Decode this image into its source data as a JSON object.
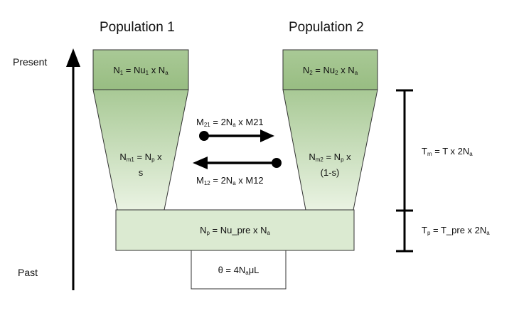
{
  "headers": {
    "population1": "Population 1",
    "population2": "Population 2"
  },
  "time_axis": {
    "present": "Present",
    "past": "Past"
  },
  "population1": {
    "top_prefix": "N",
    "top_sub1": "1",
    "top_mid": " = Nu",
    "top_sub2": "1",
    "top_mid2": " x N",
    "top_sub3": "a",
    "trap_prefix": "N",
    "trap_sub1": "m1",
    "trap_mid": " = N",
    "trap_sub2": "p",
    "trap_end": " x",
    "trap_line2": "s"
  },
  "population2": {
    "top_prefix": "N",
    "top_sub1": "2",
    "top_mid": " = Nu",
    "top_sub2": "2",
    "top_mid2": " x N",
    "top_sub3": "a",
    "trap_prefix": "N",
    "trap_sub1": "m2",
    "trap_mid": " = N",
    "trap_sub2": "p",
    "trap_end": " x",
    "trap_line2": "(1-s)"
  },
  "migration": {
    "m21_prefix": "M",
    "m21_sub": "21",
    "m21_mid": " = 2N",
    "m21_sub2": "a",
    "m21_end": " x M21",
    "m12_prefix": "M",
    "m12_sub": "12",
    "m12_mid": " = 2N",
    "m12_sub2": "a",
    "m12_end": " x M12"
  },
  "ancestral": {
    "prefix": "N",
    "sub1": "p",
    "mid": " = Nu_pre x N",
    "sub2": "a"
  },
  "root": {
    "prefix": "θ = 4N",
    "sub": "a",
    "end": "μL"
  },
  "times": {
    "tm_prefix": "T",
    "tm_sub": "m",
    "tm_mid": " = T x 2N",
    "tm_sub2": "a",
    "tp_prefix": "T",
    "tp_sub": "p",
    "tp_mid": " = T_pre x 2N",
    "tp_sub2": "a"
  },
  "colors": {
    "box_top": "#a2c48e",
    "trap_top": "#a8c995",
    "trap_bottom": "#eaf3e3",
    "ancestral": "#dbead1",
    "root": "#ffffff",
    "stroke": "#111111"
  }
}
